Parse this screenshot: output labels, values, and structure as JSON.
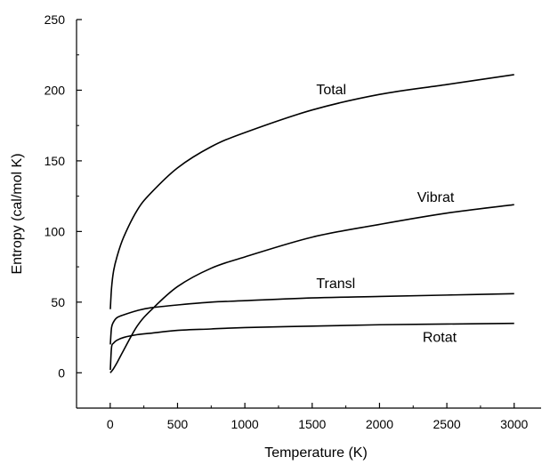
{
  "chart_data": {
    "type": "line",
    "xlabel": "Temperature (K)",
    "ylabel": "Entropy (cal/mol K)",
    "xlim": [
      -250,
      3200
    ],
    "ylim": [
      -25,
      250
    ],
    "xticks": [
      0,
      500,
      1000,
      1500,
      2000,
      2500,
      3000
    ],
    "yticks": [
      0,
      50,
      100,
      150,
      200,
      250
    ],
    "grid": false,
    "legend": "none",
    "line_color": "#000000",
    "series": [
      {
        "name": "Total",
        "x": [
          1,
          10,
          25,
          50,
          100,
          200,
          300,
          500,
          750,
          1000,
          1500,
          2000,
          2500,
          3000
        ],
        "y": [
          45,
          60,
          72,
          82,
          96,
          115,
          127,
          145,
          160,
          170,
          186,
          197,
          204,
          211
        ]
      },
      {
        "name": "Vibrat",
        "x": [
          0,
          10,
          25,
          50,
          100,
          200,
          300,
          500,
          750,
          1000,
          1500,
          2000,
          2500,
          3000
        ],
        "y": [
          0,
          1,
          3,
          7,
          16,
          33,
          44,
          61,
          74,
          82,
          96,
          105,
          113,
          119
        ]
      },
      {
        "name": "Transl",
        "x": [
          1,
          10,
          25,
          50,
          100,
          200,
          300,
          500,
          750,
          1000,
          1500,
          2000,
          2500,
          3000
        ],
        "y": [
          20,
          32,
          36,
          39,
          41,
          44,
          46,
          48,
          50,
          51,
          53,
          54,
          55,
          56
        ]
      },
      {
        "name": "Rotat",
        "x": [
          1,
          10,
          25,
          50,
          100,
          200,
          300,
          500,
          750,
          1000,
          1500,
          2000,
          2500,
          3000
        ],
        "y": [
          2,
          18,
          21,
          23,
          25,
          27,
          28,
          30,
          31,
          32,
          33,
          34,
          34.5,
          35
        ]
      }
    ],
    "annotations": [
      {
        "text": "Total",
        "x": 1530,
        "y": 197
      },
      {
        "text": "Vibrat",
        "x": 2280,
        "y": 121
      },
      {
        "text": "Transl",
        "x": 1530,
        "y": 60
      },
      {
        "text": "Rotat",
        "x": 2320,
        "y": 22
      }
    ]
  }
}
